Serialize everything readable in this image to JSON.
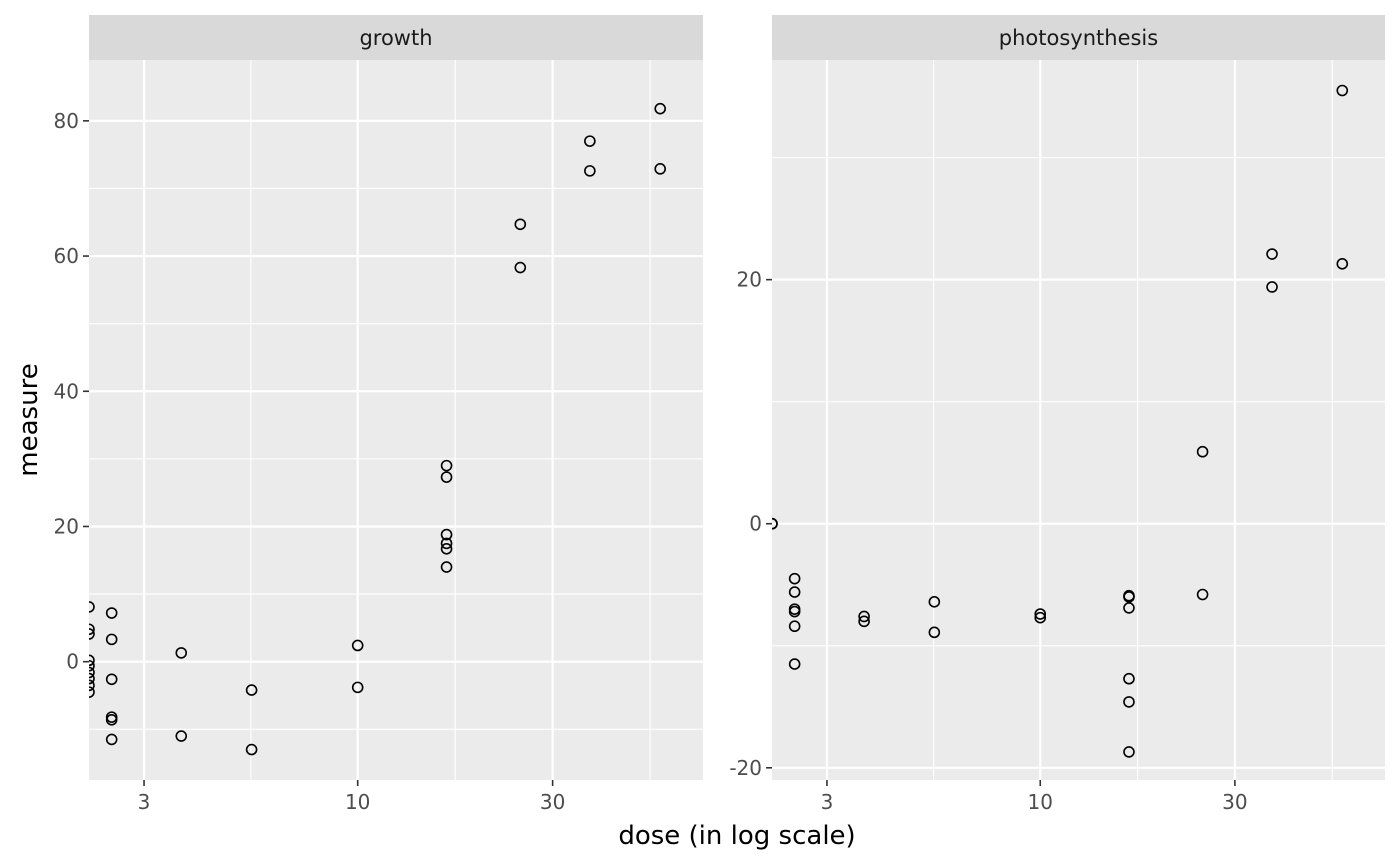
{
  "chart_data": {
    "type": "scatter",
    "xlabel": "dose (in log scale)",
    "ylabel": "measure",
    "x_scale": "log",
    "grid": true,
    "colors": {
      "panel_bg": "#ebebeb",
      "strip_bg": "#d9d9d9",
      "grid": "#ffffff",
      "point": "#000000"
    },
    "panels": [
      {
        "title": "growth",
        "xlim": [
          2.2,
          70
        ],
        "ylim": [
          -17.5,
          89
        ],
        "x_major_ticks": [
          3,
          10,
          30
        ],
        "x_tick_labels": [
          "3",
          "10",
          "30"
        ],
        "y_major_ticks": [
          0,
          20,
          40,
          60,
          80
        ],
        "y_tick_labels": [
          "0",
          "20",
          "40",
          "60",
          "80"
        ],
        "points": [
          [
            2.2,
            8.1
          ],
          [
            2.2,
            4.8
          ],
          [
            2.2,
            4.1
          ],
          [
            2.2,
            0.2
          ],
          [
            2.2,
            -0.6
          ],
          [
            2.2,
            -1.6
          ],
          [
            2.2,
            -2.5
          ],
          [
            2.2,
            -3.5
          ],
          [
            2.2,
            -4.5
          ],
          [
            2.5,
            7.2
          ],
          [
            2.5,
            3.3
          ],
          [
            2.5,
            -2.6
          ],
          [
            2.5,
            -8.2
          ],
          [
            2.5,
            -8.6
          ],
          [
            2.5,
            -11.5
          ],
          [
            3.7,
            1.3
          ],
          [
            3.7,
            -11.0
          ],
          [
            5.5,
            -4.2
          ],
          [
            5.5,
            -13.0
          ],
          [
            10,
            2.4
          ],
          [
            10,
            -3.8
          ],
          [
            16.5,
            29.0
          ],
          [
            16.5,
            27.3
          ],
          [
            16.5,
            18.8
          ],
          [
            16.5,
            17.5
          ],
          [
            16.5,
            16.7
          ],
          [
            16.5,
            14.0
          ],
          [
            25,
            64.7
          ],
          [
            25,
            58.3
          ],
          [
            37,
            77.0
          ],
          [
            37,
            72.6
          ],
          [
            55,
            81.8
          ],
          [
            55,
            72.9
          ]
        ]
      },
      {
        "title": "photosynthesis",
        "xlim": [
          2.2,
          70
        ],
        "ylim": [
          -21,
          38
        ],
        "x_major_ticks": [
          3,
          10,
          30
        ],
        "x_tick_labels": [
          "3",
          "10",
          "30"
        ],
        "y_major_ticks": [
          -20,
          0,
          20
        ],
        "y_tick_labels": [
          "-20",
          "0",
          "20"
        ],
        "points": [
          [
            2.2,
            0.0
          ],
          [
            2.2,
            0.0
          ],
          [
            2.5,
            -4.5
          ],
          [
            2.5,
            -5.6
          ],
          [
            2.5,
            -7.0
          ],
          [
            2.5,
            -7.2
          ],
          [
            2.5,
            -8.4
          ],
          [
            2.5,
            -11.5
          ],
          [
            3.7,
            -7.6
          ],
          [
            3.7,
            -8.0
          ],
          [
            5.5,
            -6.4
          ],
          [
            5.5,
            -8.9
          ],
          [
            10,
            -7.4
          ],
          [
            10,
            -7.7
          ],
          [
            16.5,
            -5.9
          ],
          [
            16.5,
            -6.0
          ],
          [
            16.5,
            -6.9
          ],
          [
            16.5,
            -12.7
          ],
          [
            16.5,
            -14.6
          ],
          [
            16.5,
            -18.7
          ],
          [
            25,
            5.9
          ],
          [
            25,
            -5.8
          ],
          [
            37,
            22.1
          ],
          [
            37,
            19.4
          ],
          [
            55,
            35.5
          ],
          [
            55,
            21.3
          ]
        ]
      }
    ]
  }
}
